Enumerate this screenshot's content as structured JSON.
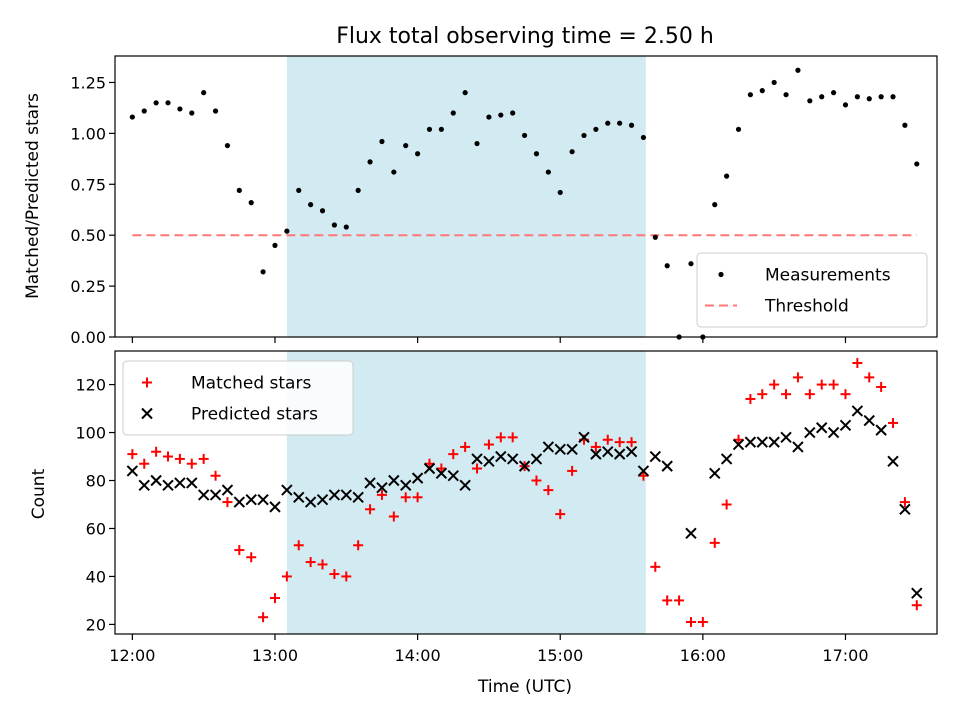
{
  "title": "Flux total observing time = 2.50 h",
  "colors": {
    "highlight": "#add8e6",
    "threshold": "#ff7777",
    "matched": "#ff0000",
    "predicted": "#000000",
    "measurement": "#000000"
  },
  "highlight_span": [
    "13:05",
    "15:36"
  ],
  "chart_data": [
    {
      "type": "scatter",
      "ylabel": "Matched/Predicted stars",
      "xlabel": "",
      "ylim": [
        0,
        1.38
      ],
      "yticks": [
        "0.00",
        "0.25",
        "0.50",
        "0.75",
        "1.00",
        "1.25"
      ],
      "xticks": [
        "12:00",
        "13:00",
        "14:00",
        "15:00",
        "16:00",
        "17:00"
      ],
      "legend_position": "bottom-right",
      "threshold": {
        "name": "Threshold",
        "y": 0.5,
        "x": [
          "12:00",
          "17:30"
        ]
      },
      "series": [
        {
          "name": "Measurements",
          "points": [
            [
              "12:00",
              1.08
            ],
            [
              "12:05",
              1.11
            ],
            [
              "12:10",
              1.15
            ],
            [
              "12:15",
              1.15
            ],
            [
              "12:20",
              1.12
            ],
            [
              "12:25",
              1.1
            ],
            [
              "12:30",
              1.2
            ],
            [
              "12:35",
              1.11
            ],
            [
              "12:40",
              0.94
            ],
            [
              "12:45",
              0.72
            ],
            [
              "12:50",
              0.66
            ],
            [
              "12:55",
              0.32
            ],
            [
              "13:00",
              0.45
            ],
            [
              "13:05",
              0.52
            ],
            [
              "13:10",
              0.72
            ],
            [
              "13:15",
              0.65
            ],
            [
              "13:20",
              0.62
            ],
            [
              "13:25",
              0.55
            ],
            [
              "13:30",
              0.54
            ],
            [
              "13:35",
              0.72
            ],
            [
              "13:40",
              0.86
            ],
            [
              "13:45",
              0.96
            ],
            [
              "13:50",
              0.81
            ],
            [
              "13:55",
              0.94
            ],
            [
              "14:00",
              0.9
            ],
            [
              "14:05",
              1.02
            ],
            [
              "14:10",
              1.02
            ],
            [
              "14:15",
              1.1
            ],
            [
              "14:20",
              1.2
            ],
            [
              "14:25",
              0.95
            ],
            [
              "14:30",
              1.08
            ],
            [
              "14:35",
              1.09
            ],
            [
              "14:40",
              1.1
            ],
            [
              "14:45",
              0.99
            ],
            [
              "14:50",
              0.9
            ],
            [
              "14:55",
              0.81
            ],
            [
              "15:00",
              0.71
            ],
            [
              "15:05",
              0.91
            ],
            [
              "15:10",
              0.99
            ],
            [
              "15:15",
              1.02
            ],
            [
              "15:20",
              1.05
            ],
            [
              "15:25",
              1.05
            ],
            [
              "15:30",
              1.04
            ],
            [
              "15:35",
              0.98
            ],
            [
              "15:40",
              0.49
            ],
            [
              "15:45",
              0.35
            ],
            [
              "15:50",
              0.0
            ],
            [
              "15:55",
              0.36
            ],
            [
              "16:00",
              0.0
            ],
            [
              "16:05",
              0.65
            ],
            [
              "16:10",
              0.79
            ],
            [
              "16:15",
              1.02
            ],
            [
              "16:20",
              1.19
            ],
            [
              "16:25",
              1.21
            ],
            [
              "16:30",
              1.25
            ],
            [
              "16:35",
              1.19
            ],
            [
              "16:40",
              1.31
            ],
            [
              "16:45",
              1.16
            ],
            [
              "16:50",
              1.18
            ],
            [
              "16:55",
              1.2
            ],
            [
              "17:00",
              1.14
            ],
            [
              "17:05",
              1.18
            ],
            [
              "17:10",
              1.17
            ],
            [
              "17:15",
              1.18
            ],
            [
              "17:20",
              1.18
            ],
            [
              "17:25",
              1.04
            ],
            [
              "17:30",
              0.85
            ]
          ]
        }
      ]
    },
    {
      "type": "scatter",
      "ylabel": "Count",
      "xlabel": "Time (UTC)",
      "ylim": [
        16,
        134
      ],
      "yticks": [
        "20",
        "40",
        "60",
        "80",
        "100",
        "120"
      ],
      "xticks": [
        "12:00",
        "13:00",
        "14:00",
        "15:00",
        "16:00",
        "17:00"
      ],
      "legend_position": "top-left",
      "series": [
        {
          "name": "Matched stars",
          "marker": "plus",
          "points": [
            [
              "12:00",
              91
            ],
            [
              "12:05",
              87
            ],
            [
              "12:10",
              92
            ],
            [
              "12:15",
              90
            ],
            [
              "12:20",
              89
            ],
            [
              "12:25",
              87
            ],
            [
              "12:30",
              89
            ],
            [
              "12:35",
              82
            ],
            [
              "12:40",
              71
            ],
            [
              "12:45",
              51
            ],
            [
              "12:50",
              48
            ],
            [
              "12:55",
              23
            ],
            [
              "13:00",
              31
            ],
            [
              "13:05",
              40
            ],
            [
              "13:10",
              53
            ],
            [
              "13:15",
              46
            ],
            [
              "13:20",
              45
            ],
            [
              "13:25",
              41
            ],
            [
              "13:30",
              40
            ],
            [
              "13:35",
              53
            ],
            [
              "13:40",
              68
            ],
            [
              "13:45",
              74
            ],
            [
              "13:50",
              65
            ],
            [
              "13:55",
              73
            ],
            [
              "14:00",
              73
            ],
            [
              "14:05",
              87
            ],
            [
              "14:10",
              85
            ],
            [
              "14:15",
              91
            ],
            [
              "14:20",
              94
            ],
            [
              "14:25",
              85
            ],
            [
              "14:30",
              95
            ],
            [
              "14:35",
              98
            ],
            [
              "14:40",
              98
            ],
            [
              "14:45",
              86
            ],
            [
              "14:50",
              80
            ],
            [
              "14:55",
              76
            ],
            [
              "15:00",
              66
            ],
            [
              "15:05",
              84
            ],
            [
              "15:10",
              97
            ],
            [
              "15:15",
              94
            ],
            [
              "15:20",
              97
            ],
            [
              "15:25",
              96
            ],
            [
              "15:30",
              96
            ],
            [
              "15:35",
              82
            ],
            [
              "15:40",
              44
            ],
            [
              "15:45",
              30
            ],
            [
              "15:50",
              30
            ],
            [
              "15:55",
              21
            ],
            [
              "16:00",
              21
            ],
            [
              "16:05",
              54
            ],
            [
              "16:10",
              70
            ],
            [
              "16:15",
              97
            ],
            [
              "16:20",
              114
            ],
            [
              "16:25",
              116
            ],
            [
              "16:30",
              120
            ],
            [
              "16:35",
              116
            ],
            [
              "16:40",
              123
            ],
            [
              "16:45",
              116
            ],
            [
              "16:50",
              120
            ],
            [
              "16:55",
              120
            ],
            [
              "17:00",
              116
            ],
            [
              "17:05",
              129
            ],
            [
              "17:10",
              123
            ],
            [
              "17:15",
              119
            ],
            [
              "17:20",
              104
            ],
            [
              "17:25",
              71
            ],
            [
              "17:30",
              28
            ]
          ]
        },
        {
          "name": "Predicted stars",
          "marker": "x",
          "points": [
            [
              "12:00",
              84
            ],
            [
              "12:05",
              78
            ],
            [
              "12:10",
              80
            ],
            [
              "12:15",
              78
            ],
            [
              "12:20",
              79
            ],
            [
              "12:25",
              79
            ],
            [
              "12:30",
              74
            ],
            [
              "12:35",
              74
            ],
            [
              "12:40",
              76
            ],
            [
              "12:45",
              71
            ],
            [
              "12:50",
              72
            ],
            [
              "12:55",
              72
            ],
            [
              "13:00",
              69
            ],
            [
              "13:05",
              76
            ],
            [
              "13:10",
              73
            ],
            [
              "13:15",
              71
            ],
            [
              "13:20",
              72
            ],
            [
              "13:25",
              74
            ],
            [
              "13:30",
              74
            ],
            [
              "13:35",
              73
            ],
            [
              "13:40",
              79
            ],
            [
              "13:45",
              77
            ],
            [
              "13:50",
              80
            ],
            [
              "13:55",
              78
            ],
            [
              "14:00",
              81
            ],
            [
              "14:05",
              85
            ],
            [
              "14:10",
              83
            ],
            [
              "14:15",
              82
            ],
            [
              "14:20",
              78
            ],
            [
              "14:25",
              89
            ],
            [
              "14:30",
              88
            ],
            [
              "14:35",
              90
            ],
            [
              "14:40",
              89
            ],
            [
              "14:45",
              86
            ],
            [
              "14:50",
              89
            ],
            [
              "14:55",
              94
            ],
            [
              "15:00",
              93
            ],
            [
              "15:05",
              93
            ],
            [
              "15:10",
              98
            ],
            [
              "15:15",
              91
            ],
            [
              "15:20",
              92
            ],
            [
              "15:25",
              91
            ],
            [
              "15:30",
              92
            ],
            [
              "15:35",
              84
            ],
            [
              "15:40",
              90
            ],
            [
              "15:45",
              86
            ],
            [
              "15:50",
              null
            ],
            [
              "15:55",
              58
            ],
            [
              "16:00",
              null
            ],
            [
              "16:05",
              83
            ],
            [
              "16:10",
              89
            ],
            [
              "16:15",
              95
            ],
            [
              "16:20",
              96
            ],
            [
              "16:25",
              96
            ],
            [
              "16:30",
              96
            ],
            [
              "16:35",
              98
            ],
            [
              "16:40",
              94
            ],
            [
              "16:45",
              100
            ],
            [
              "16:50",
              102
            ],
            [
              "16:55",
              100
            ],
            [
              "17:00",
              103
            ],
            [
              "17:05",
              109
            ],
            [
              "17:10",
              105
            ],
            [
              "17:15",
              101
            ],
            [
              "17:20",
              88
            ],
            [
              "17:25",
              68
            ],
            [
              "17:30",
              33
            ]
          ]
        }
      ]
    }
  ]
}
